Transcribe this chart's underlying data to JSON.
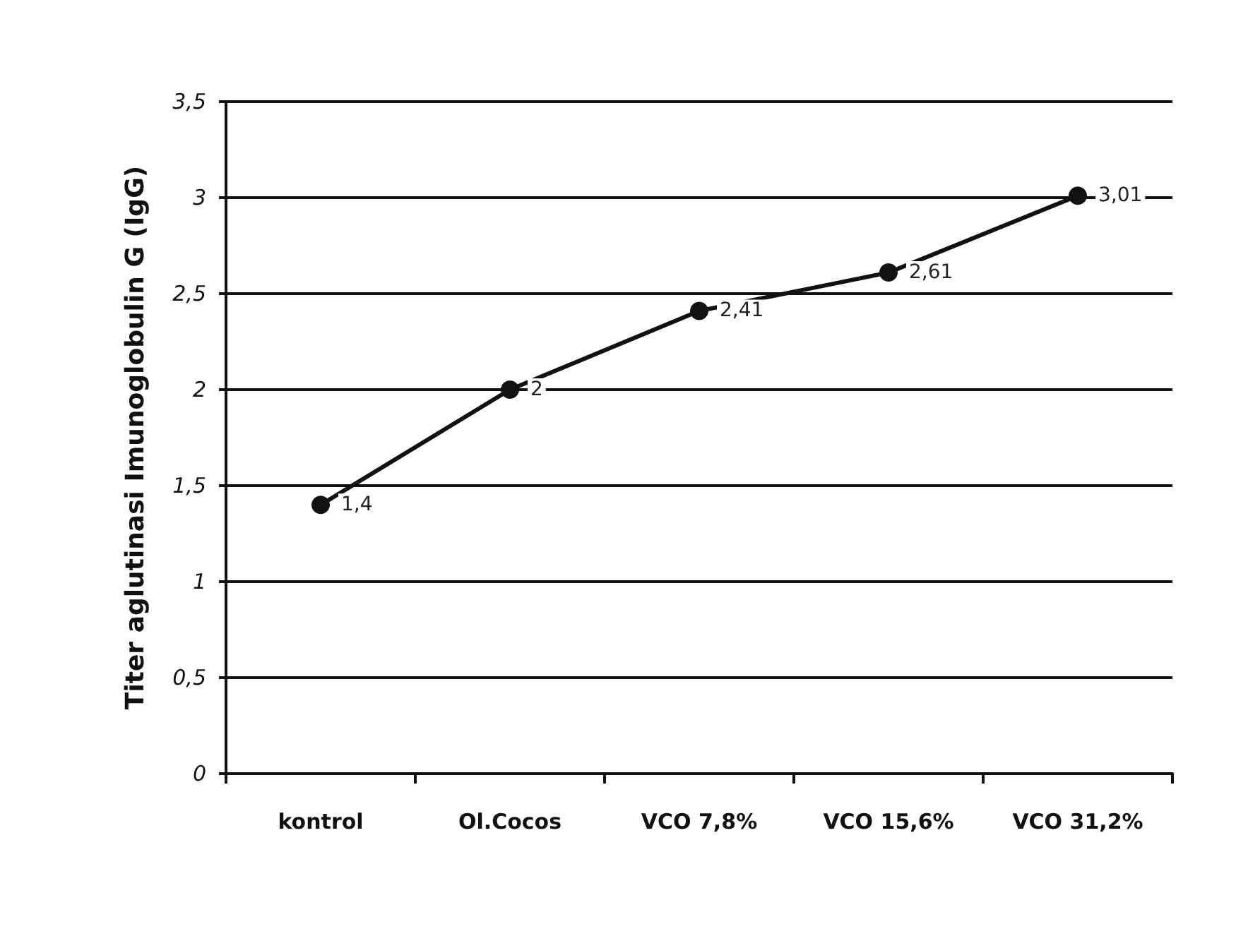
{
  "chart_data": {
    "type": "line",
    "ylabel": "Titer aglutinasi Imunoglobulin G (IgG)",
    "categories": [
      "kontrol",
      "Ol.Cocos",
      "VCO 7,8%",
      "VCO 15,6%",
      "VCO 31,2%"
    ],
    "series": [
      {
        "color": "#111111",
        "values": [
          1.4,
          2,
          2.41,
          2.61,
          3.01
        ],
        "value_labels": [
          "1,4",
          "2",
          "2,41",
          "2,61",
          "3,01"
        ]
      }
    ],
    "ylim": [
      0,
      3.5
    ],
    "yticks": [
      0,
      {
        "value": 0.5,
        "label": "0,5"
      },
      1,
      {
        "value": 1.5,
        "label": "1,5"
      },
      2,
      {
        "value": 2.5,
        "label": "2,5"
      },
      3,
      {
        "value": 3.5,
        "label": "3,5"
      }
    ],
    "grid": "y",
    "marker": "circle",
    "line_style": "solid"
  }
}
